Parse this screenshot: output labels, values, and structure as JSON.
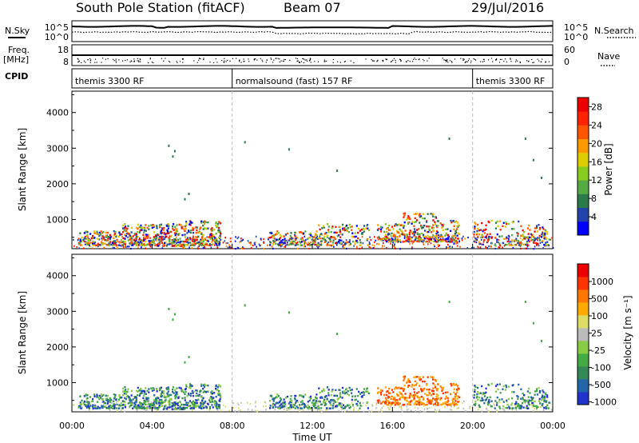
{
  "header": {
    "station": "South Pole Station (fitACF)",
    "beam": "Beam 07",
    "date": "29/Jul/2016"
  },
  "left_labels": {
    "nsky": "N.Sky",
    "freq": "Freq.",
    "freq_unit": "[MHz]",
    "cpid": "CPID"
  },
  "right_labels": {
    "nsearch": "N.Search",
    "nave": "Nave"
  },
  "top_panels": {
    "noise_ticks_left": [
      "10^5",
      "10^0"
    ],
    "noise_ticks_right": [
      "10^5",
      "10^0"
    ],
    "freq_ticks": [
      "18",
      "8"
    ],
    "nave_ticks": [
      "60",
      "0"
    ]
  },
  "cpid_segments": [
    {
      "label": "themis 3300 RF",
      "start": 0,
      "end": 8
    },
    {
      "label": "normalsound (fast) 157 RF",
      "start": 8,
      "end": 20
    },
    {
      "label": "themis 3300 RF",
      "start": 20,
      "end": 24
    }
  ],
  "chart_data": [
    {
      "type": "heatmap",
      "name": "power",
      "ylabel": "Slant Range [km]",
      "xlabel": "Time UT",
      "xlim": [
        0,
        24
      ],
      "ylim": [
        180,
        4600
      ],
      "y_ticks": [
        1000,
        2000,
        3000,
        4000
      ],
      "colorbar_label": "Power [dB]",
      "colorbar_ticks": [
        "4",
        "8",
        "12",
        "16",
        "20",
        "24",
        "28"
      ],
      "colorbar_colors": [
        "#0000ff",
        "#2244aa",
        "#2a7a4a",
        "#55aa44",
        "#88cc22",
        "#ddcc00",
        "#ff9900",
        "#ff5500",
        "#ff2200",
        "#ee0000"
      ]
    },
    {
      "type": "heatmap",
      "name": "velocity",
      "ylabel": "Slant Range [km]",
      "xlabel": "Time UT",
      "xlim": [
        0,
        24
      ],
      "ylim": [
        180,
        4600
      ],
      "y_ticks": [
        1000,
        2000,
        3000,
        4000
      ],
      "x_ticks": [
        "00:00",
        "04:00",
        "08:00",
        "12:00",
        "16:00",
        "20:00",
        "00:00"
      ],
      "colorbar_label": "Velocity [m s⁻¹]",
      "colorbar_ticks": [
        "1000",
        "500",
        "100",
        "25",
        "-25",
        "-100",
        "-500",
        "-1000"
      ],
      "colorbar_colors": [
        "#2233cc",
        "#2266aa",
        "#338855",
        "#44aa44",
        "#88cc44",
        "#bbbbbb",
        "#dddd66",
        "#ffaa00",
        "#ff7700",
        "#ff3300",
        "#ee0000"
      ]
    }
  ]
}
